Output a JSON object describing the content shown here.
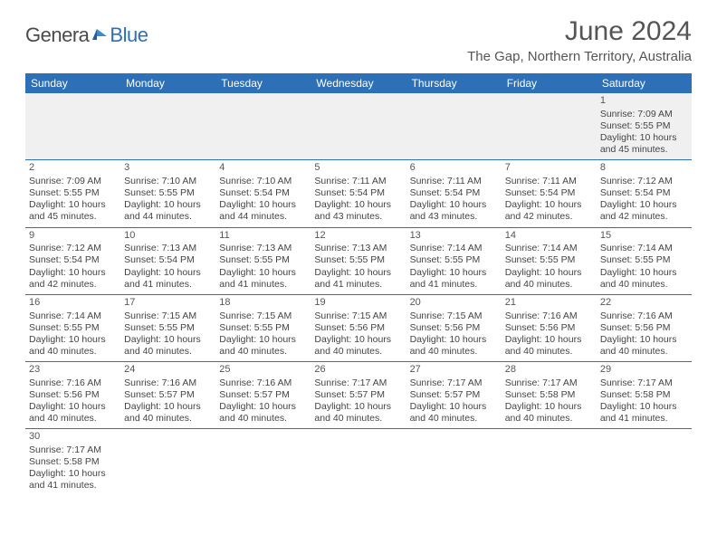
{
  "logo": {
    "part1": "Genera",
    "part2": "Blue"
  },
  "title": "June 2024",
  "location": "The Gap, Northern Territory, Australia",
  "colors": {
    "header_bg": "#2d70b7",
    "header_fg": "#ffffff",
    "row_alt_bg": "#f0f0f0",
    "text": "#444444",
    "border": "#2d70b7"
  },
  "weekdays": [
    "Sunday",
    "Monday",
    "Tuesday",
    "Wednesday",
    "Thursday",
    "Friday",
    "Saturday"
  ],
  "weeks": [
    [
      null,
      null,
      null,
      null,
      null,
      null,
      {
        "n": "1",
        "sr": "Sunrise: 7:09 AM",
        "ss": "Sunset: 5:55 PM",
        "d1": "Daylight: 10 hours",
        "d2": "and 45 minutes."
      }
    ],
    [
      {
        "n": "2",
        "sr": "Sunrise: 7:09 AM",
        "ss": "Sunset: 5:55 PM",
        "d1": "Daylight: 10 hours",
        "d2": "and 45 minutes."
      },
      {
        "n": "3",
        "sr": "Sunrise: 7:10 AM",
        "ss": "Sunset: 5:55 PM",
        "d1": "Daylight: 10 hours",
        "d2": "and 44 minutes."
      },
      {
        "n": "4",
        "sr": "Sunrise: 7:10 AM",
        "ss": "Sunset: 5:54 PM",
        "d1": "Daylight: 10 hours",
        "d2": "and 44 minutes."
      },
      {
        "n": "5",
        "sr": "Sunrise: 7:11 AM",
        "ss": "Sunset: 5:54 PM",
        "d1": "Daylight: 10 hours",
        "d2": "and 43 minutes."
      },
      {
        "n": "6",
        "sr": "Sunrise: 7:11 AM",
        "ss": "Sunset: 5:54 PM",
        "d1": "Daylight: 10 hours",
        "d2": "and 43 minutes."
      },
      {
        "n": "7",
        "sr": "Sunrise: 7:11 AM",
        "ss": "Sunset: 5:54 PM",
        "d1": "Daylight: 10 hours",
        "d2": "and 42 minutes."
      },
      {
        "n": "8",
        "sr": "Sunrise: 7:12 AM",
        "ss": "Sunset: 5:54 PM",
        "d1": "Daylight: 10 hours",
        "d2": "and 42 minutes."
      }
    ],
    [
      {
        "n": "9",
        "sr": "Sunrise: 7:12 AM",
        "ss": "Sunset: 5:54 PM",
        "d1": "Daylight: 10 hours",
        "d2": "and 42 minutes."
      },
      {
        "n": "10",
        "sr": "Sunrise: 7:13 AM",
        "ss": "Sunset: 5:54 PM",
        "d1": "Daylight: 10 hours",
        "d2": "and 41 minutes."
      },
      {
        "n": "11",
        "sr": "Sunrise: 7:13 AM",
        "ss": "Sunset: 5:55 PM",
        "d1": "Daylight: 10 hours",
        "d2": "and 41 minutes."
      },
      {
        "n": "12",
        "sr": "Sunrise: 7:13 AM",
        "ss": "Sunset: 5:55 PM",
        "d1": "Daylight: 10 hours",
        "d2": "and 41 minutes."
      },
      {
        "n": "13",
        "sr": "Sunrise: 7:14 AM",
        "ss": "Sunset: 5:55 PM",
        "d1": "Daylight: 10 hours",
        "d2": "and 41 minutes."
      },
      {
        "n": "14",
        "sr": "Sunrise: 7:14 AM",
        "ss": "Sunset: 5:55 PM",
        "d1": "Daylight: 10 hours",
        "d2": "and 40 minutes."
      },
      {
        "n": "15",
        "sr": "Sunrise: 7:14 AM",
        "ss": "Sunset: 5:55 PM",
        "d1": "Daylight: 10 hours",
        "d2": "and 40 minutes."
      }
    ],
    [
      {
        "n": "16",
        "sr": "Sunrise: 7:14 AM",
        "ss": "Sunset: 5:55 PM",
        "d1": "Daylight: 10 hours",
        "d2": "and 40 minutes."
      },
      {
        "n": "17",
        "sr": "Sunrise: 7:15 AM",
        "ss": "Sunset: 5:55 PM",
        "d1": "Daylight: 10 hours",
        "d2": "and 40 minutes."
      },
      {
        "n": "18",
        "sr": "Sunrise: 7:15 AM",
        "ss": "Sunset: 5:55 PM",
        "d1": "Daylight: 10 hours",
        "d2": "and 40 minutes."
      },
      {
        "n": "19",
        "sr": "Sunrise: 7:15 AM",
        "ss": "Sunset: 5:56 PM",
        "d1": "Daylight: 10 hours",
        "d2": "and 40 minutes."
      },
      {
        "n": "20",
        "sr": "Sunrise: 7:15 AM",
        "ss": "Sunset: 5:56 PM",
        "d1": "Daylight: 10 hours",
        "d2": "and 40 minutes."
      },
      {
        "n": "21",
        "sr": "Sunrise: 7:16 AM",
        "ss": "Sunset: 5:56 PM",
        "d1": "Daylight: 10 hours",
        "d2": "and 40 minutes."
      },
      {
        "n": "22",
        "sr": "Sunrise: 7:16 AM",
        "ss": "Sunset: 5:56 PM",
        "d1": "Daylight: 10 hours",
        "d2": "and 40 minutes."
      }
    ],
    [
      {
        "n": "23",
        "sr": "Sunrise: 7:16 AM",
        "ss": "Sunset: 5:56 PM",
        "d1": "Daylight: 10 hours",
        "d2": "and 40 minutes."
      },
      {
        "n": "24",
        "sr": "Sunrise: 7:16 AM",
        "ss": "Sunset: 5:57 PM",
        "d1": "Daylight: 10 hours",
        "d2": "and 40 minutes."
      },
      {
        "n": "25",
        "sr": "Sunrise: 7:16 AM",
        "ss": "Sunset: 5:57 PM",
        "d1": "Daylight: 10 hours",
        "d2": "and 40 minutes."
      },
      {
        "n": "26",
        "sr": "Sunrise: 7:17 AM",
        "ss": "Sunset: 5:57 PM",
        "d1": "Daylight: 10 hours",
        "d2": "and 40 minutes."
      },
      {
        "n": "27",
        "sr": "Sunrise: 7:17 AM",
        "ss": "Sunset: 5:57 PM",
        "d1": "Daylight: 10 hours",
        "d2": "and 40 minutes."
      },
      {
        "n": "28",
        "sr": "Sunrise: 7:17 AM",
        "ss": "Sunset: 5:58 PM",
        "d1": "Daylight: 10 hours",
        "d2": "and 40 minutes."
      },
      {
        "n": "29",
        "sr": "Sunrise: 7:17 AM",
        "ss": "Sunset: 5:58 PM",
        "d1": "Daylight: 10 hours",
        "d2": "and 41 minutes."
      }
    ],
    [
      {
        "n": "30",
        "sr": "Sunrise: 7:17 AM",
        "ss": "Sunset: 5:58 PM",
        "d1": "Daylight: 10 hours",
        "d2": "and 41 minutes."
      },
      null,
      null,
      null,
      null,
      null,
      null
    ]
  ]
}
